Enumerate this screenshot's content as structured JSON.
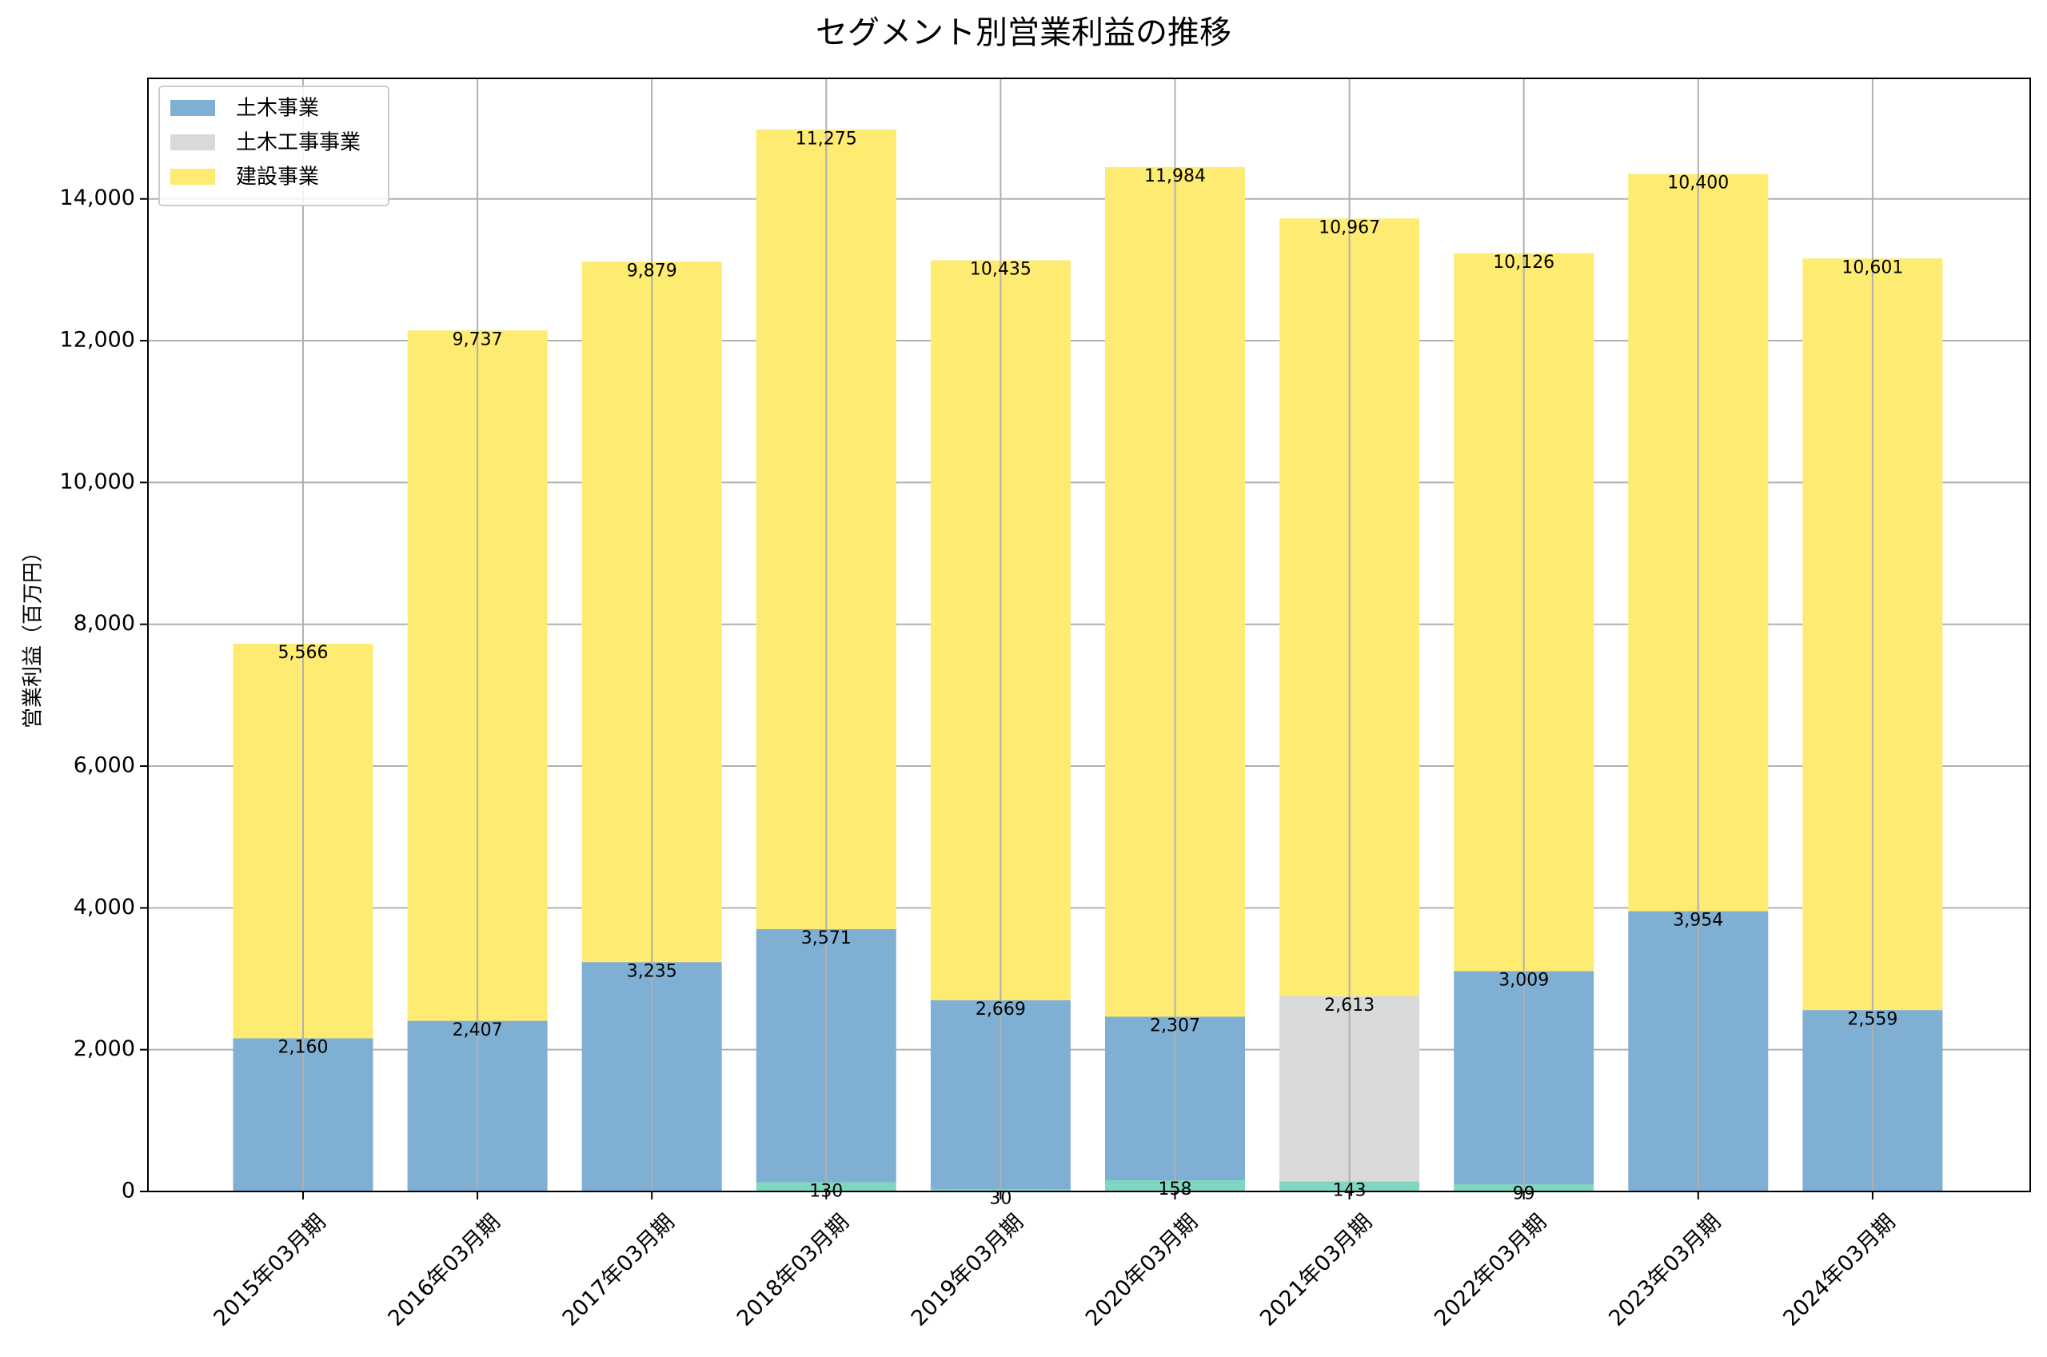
{
  "chart_data": {
    "type": "bar",
    "stacked": true,
    "title": "セグメント別営業利益の推移",
    "xlabel": "",
    "ylabel": "営業利益（百万円）",
    "ylim": [
      0,
      15700
    ],
    "yticks": [
      0,
      2000,
      4000,
      6000,
      8000,
      10000,
      12000,
      14000
    ],
    "ytick_labels": [
      "0",
      "2,000",
      "4,000",
      "6,000",
      "8,000",
      "10,000",
      "12,000",
      "14,000"
    ],
    "grid": true,
    "legend_position": "top-left",
    "categories": [
      "2015年03月期",
      "2016年03月期",
      "2017年03月期",
      "2018年03月期",
      "2019年03月期",
      "2020年03月期",
      "2021年03月期",
      "2022年03月期",
      "2023年03月期",
      "2024年03月期"
    ],
    "series": [
      {
        "key": "teal",
        "name": "",
        "color": "#7fd7c0",
        "legend": false,
        "values": [
          0,
          0,
          0,
          130,
          30,
          158,
          143,
          99,
          0,
          0
        ],
        "labels": [
          "",
          "",
          "",
          "130",
          "30",
          "158",
          "143",
          "99",
          "",
          ""
        ]
      },
      {
        "key": "doboku",
        "name": "土木事業",
        "color": "#7fafd3",
        "legend": true,
        "values": [
          2160,
          2407,
          3235,
          3571,
          2669,
          2307,
          0,
          3009,
          3954,
          2559
        ],
        "labels": [
          "2,160",
          "2,407",
          "3,235",
          "3,571",
          "2,669",
          "2,307",
          "",
          "3,009",
          "3,954",
          "2,559"
        ]
      },
      {
        "key": "dobokukouji",
        "name": "土木工事事業",
        "color": "#d9d9d9",
        "legend": true,
        "values": [
          0,
          0,
          0,
          0,
          0,
          0,
          2613,
          0,
          0,
          0
        ],
        "labels": [
          "",
          "",
          "",
          "",
          "",
          "",
          "2,613",
          "",
          "",
          ""
        ]
      },
      {
        "key": "kensetsu",
        "name": "建設事業",
        "color": "#feeb72",
        "legend": true,
        "values": [
          5566,
          9737,
          9879,
          11275,
          10435,
          11984,
          10967,
          10126,
          10400,
          10601
        ],
        "labels": [
          "5,566",
          "9,737",
          "9,879",
          "11,275",
          "10,435",
          "11,984",
          "10,967",
          "10,126",
          "10,400",
          "10,601"
        ]
      }
    ]
  }
}
